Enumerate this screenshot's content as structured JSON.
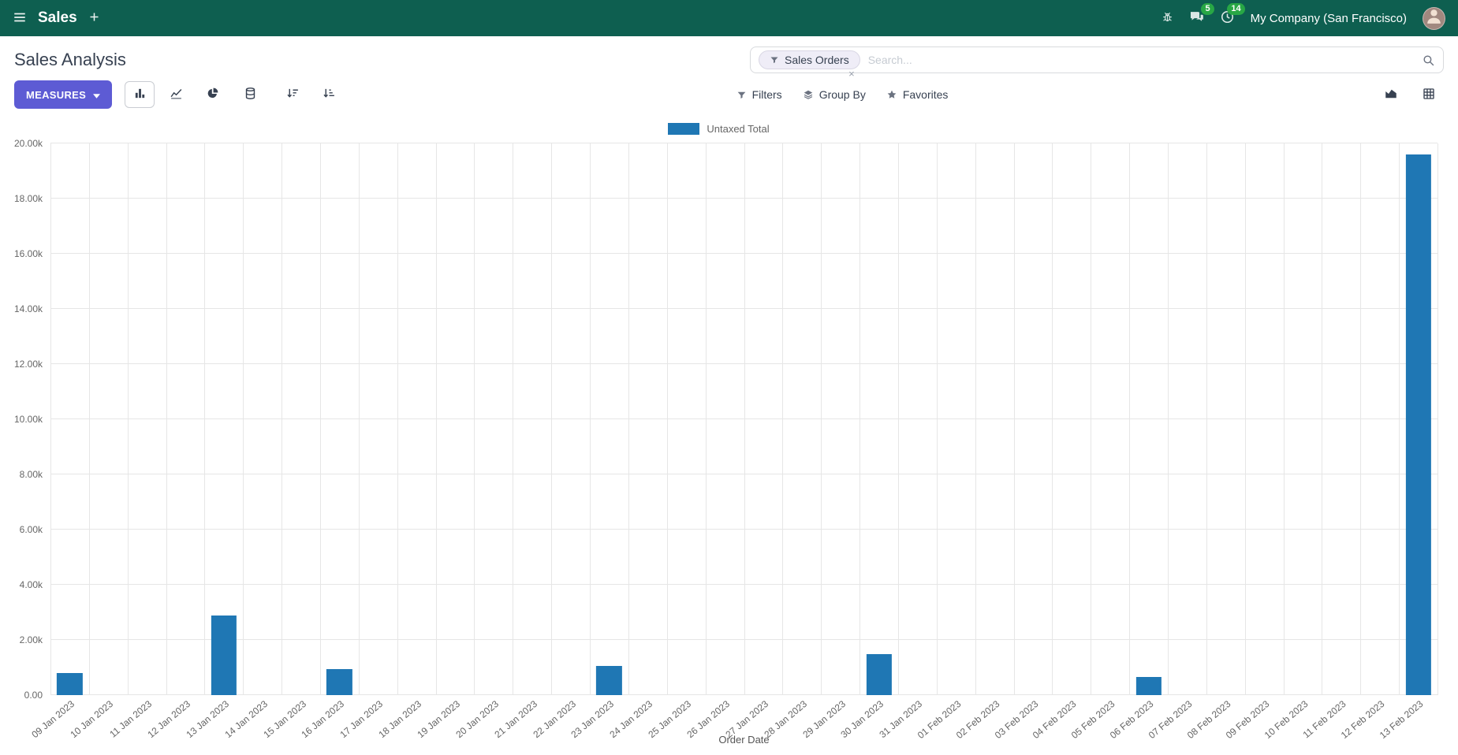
{
  "colors": {
    "navbar_bg": "#0e5f50",
    "primary_button": "#5d5bd4",
    "bar": "#1f77b4",
    "badge": "#28a745"
  },
  "icons": {
    "menu": "hamburger",
    "add": "plus",
    "debug": "bug",
    "messages": "chat-bubbles",
    "activities": "clock",
    "search": "magnifier",
    "facet": "funnel",
    "measures_caret": "chevron-down",
    "bar_chart": "bar-chart",
    "line_chart": "line-chart",
    "pie_chart": "pie-chart",
    "stacked": "database",
    "sort_desc": "sort-amount-desc",
    "sort_asc": "sort-amount-asc",
    "filters": "funnel",
    "group_by": "layers",
    "favorites": "star",
    "graph_view": "area-chart",
    "pivot_view": "grid-table"
  },
  "navbar": {
    "app_name": "Sales",
    "messages_badge": "5",
    "activities_badge": "14",
    "company": "My Company (San Francisco)"
  },
  "control": {
    "title": "Sales Analysis",
    "search": {
      "facet": "Sales Orders",
      "remove_glyph": "×",
      "placeholder": "Search..."
    },
    "measures_label": "MEASURES",
    "filters_label": "Filters",
    "group_by_label": "Group By",
    "favorites_label": "Favorites"
  },
  "chart_data": {
    "type": "bar",
    "title": "",
    "xlabel": "Order Date",
    "ylabel": "",
    "ylim": [
      0,
      20000
    ],
    "grid": true,
    "legend_position": "top-center",
    "categories": [
      "09 Jan 2023",
      "10 Jan 2023",
      "11 Jan 2023",
      "12 Jan 2023",
      "13 Jan 2023",
      "14 Jan 2023",
      "15 Jan 2023",
      "16 Jan 2023",
      "17 Jan 2023",
      "18 Jan 2023",
      "19 Jan 2023",
      "20 Jan 2023",
      "21 Jan 2023",
      "22 Jan 2023",
      "23 Jan 2023",
      "24 Jan 2023",
      "25 Jan 2023",
      "26 Jan 2023",
      "27 Jan 2023",
      "28 Jan 2023",
      "29 Jan 2023",
      "30 Jan 2023",
      "31 Jan 2023",
      "01 Feb 2023",
      "02 Feb 2023",
      "03 Feb 2023",
      "04 Feb 2023",
      "05 Feb 2023",
      "06 Feb 2023",
      "07 Feb 2023",
      "08 Feb 2023",
      "09 Feb 2023",
      "10 Feb 2023",
      "11 Feb 2023",
      "12 Feb 2023",
      "13 Feb 2023"
    ],
    "series": [
      {
        "name": "Untaxed Total",
        "color": "#1f77b4",
        "values": [
          800,
          0,
          0,
          0,
          2900,
          0,
          0,
          950,
          0,
          0,
          0,
          0,
          0,
          0,
          1050,
          0,
          0,
          0,
          0,
          0,
          0,
          1500,
          0,
          0,
          0,
          0,
          0,
          0,
          650,
          0,
          0,
          0,
          0,
          0,
          0,
          19600
        ]
      }
    ],
    "y_ticks": [
      {
        "value": 0,
        "label": "0.00"
      },
      {
        "value": 2000,
        "label": "2.00k"
      },
      {
        "value": 4000,
        "label": "4.00k"
      },
      {
        "value": 6000,
        "label": "6.00k"
      },
      {
        "value": 8000,
        "label": "8.00k"
      },
      {
        "value": 10000,
        "label": "10.00k"
      },
      {
        "value": 12000,
        "label": "12.00k"
      },
      {
        "value": 14000,
        "label": "14.00k"
      },
      {
        "value": 16000,
        "label": "16.00k"
      },
      {
        "value": 18000,
        "label": "18.00k"
      },
      {
        "value": 20000,
        "label": "20.00k"
      }
    ]
  }
}
